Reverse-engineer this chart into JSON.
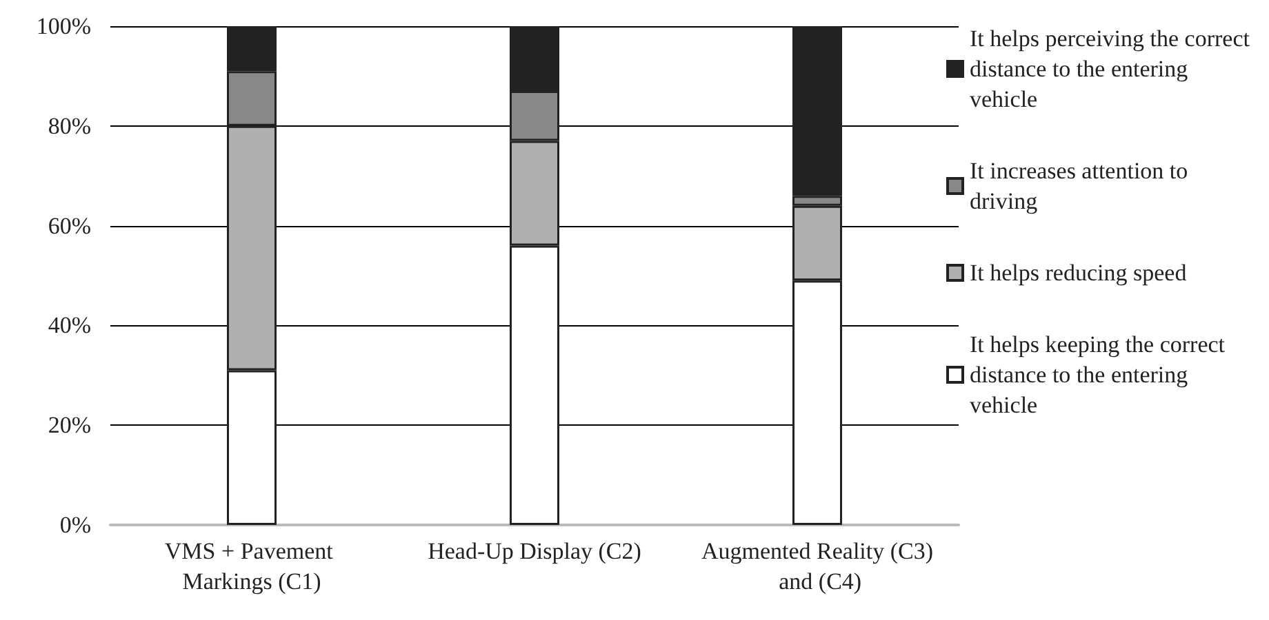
{
  "chart_data": {
    "type": "bar",
    "stacked": true,
    "categories": [
      "VMS + Pavement Markings (C1)",
      "Head-Up Display (C2)",
      "Augmented Reality (C3) and (C4)"
    ],
    "series": [
      {
        "name": "It helps keeping the correct distance to the entering vehicle",
        "color": "#ffffff",
        "values": [
          31,
          56,
          49
        ]
      },
      {
        "name": "It helps reducing speed",
        "color": "#b0b0b0",
        "values": [
          49,
          21,
          15
        ]
      },
      {
        "name": "It increases attention to driving",
        "color": "#888888",
        "values": [
          11,
          10,
          2
        ]
      },
      {
        "name": "It helps perceiving the correct distance to the entering vehicle",
        "color": "#222222",
        "values": [
          9,
          13,
          34
        ]
      }
    ],
    "ylim": [
      0,
      100
    ],
    "yticks": [
      {
        "value": 0,
        "label": "0%"
      },
      {
        "value": 20,
        "label": "20%"
      },
      {
        "value": 40,
        "label": "40%"
      },
      {
        "value": 60,
        "label": "60%"
      },
      {
        "value": 80,
        "label": "80%"
      },
      {
        "value": 100,
        "label": "100%"
      }
    ],
    "grid": "y",
    "legend": "right"
  }
}
